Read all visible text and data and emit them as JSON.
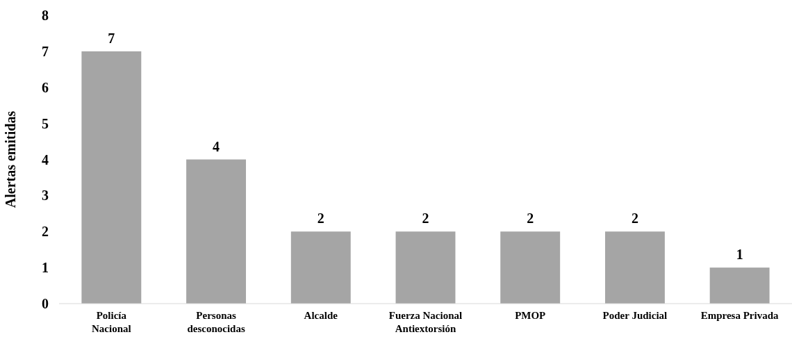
{
  "chart_data": {
    "type": "bar",
    "ylabel": "Alertas emitidas",
    "categories": [
      "Policía Nacional",
      "Personas desconocidas",
      "Alcalde",
      "Fuerza Nacional Antiextorsión",
      "PMOP",
      "Poder Judicial",
      "Empresa Privada"
    ],
    "values": [
      7,
      4,
      2,
      2,
      2,
      2,
      1
    ],
    "color": "#a5a5a5",
    "data_labels": true,
    "ylim": [
      0,
      8
    ],
    "yticks": [
      0,
      1,
      2,
      3,
      4,
      5,
      6,
      7,
      8
    ],
    "grid": false
  }
}
